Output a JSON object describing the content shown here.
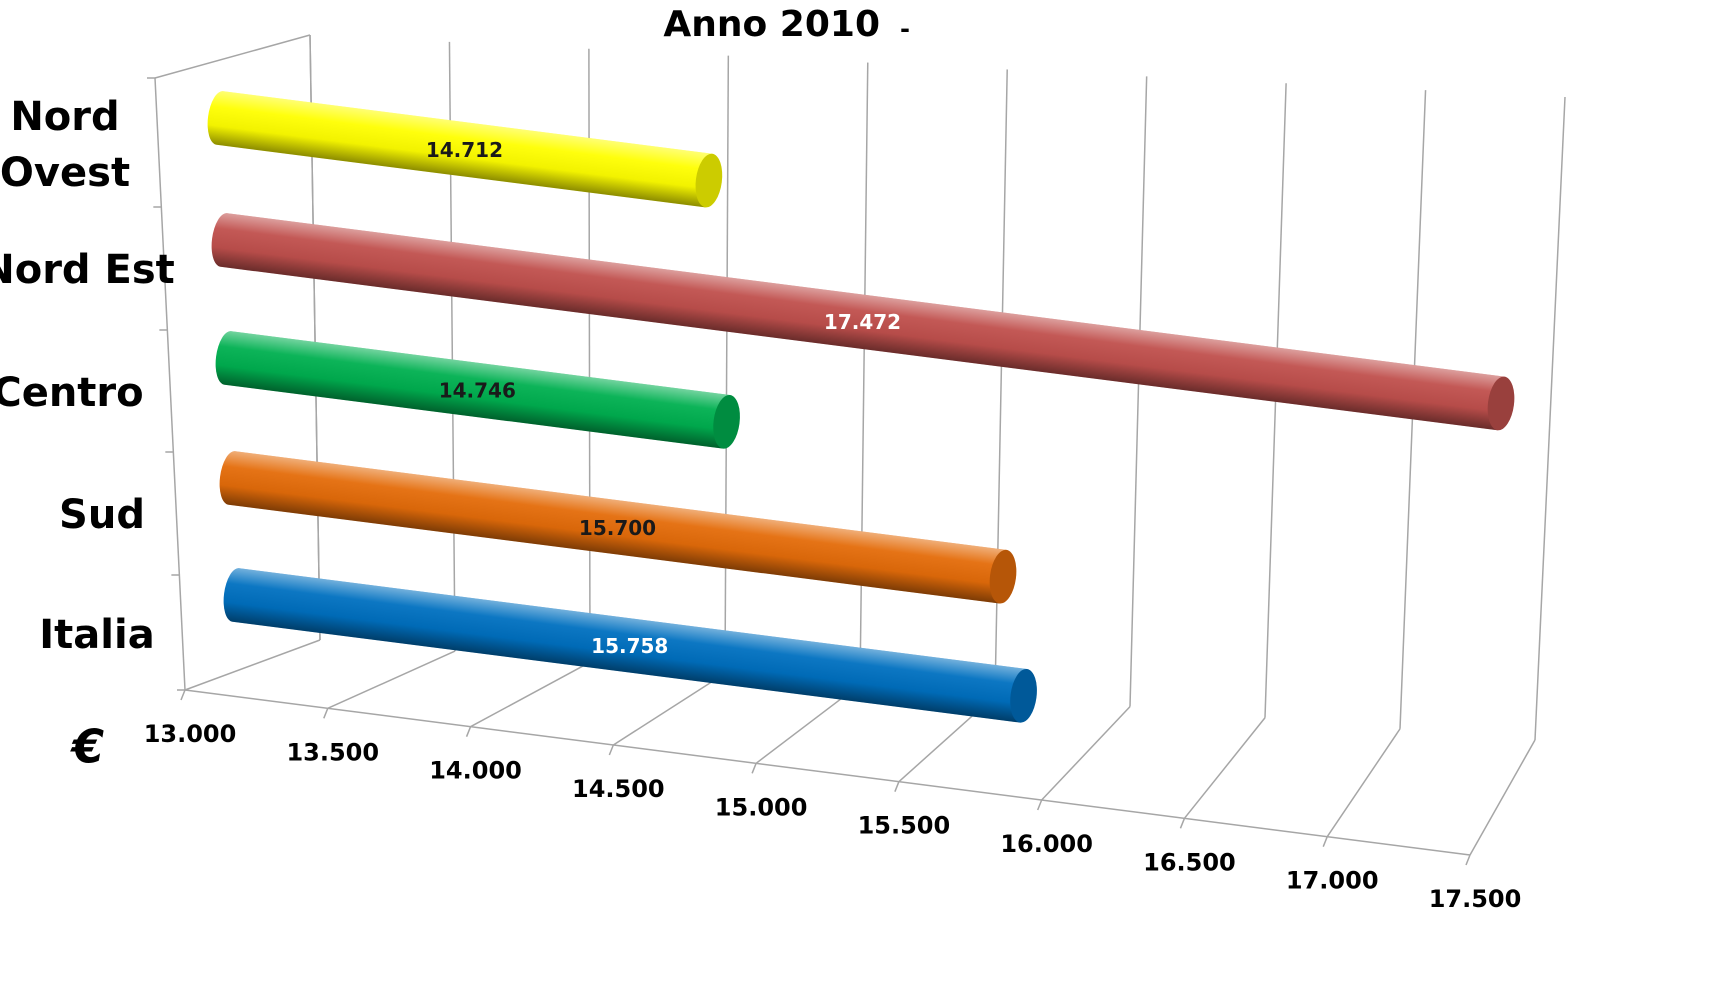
{
  "chart_data": {
    "type": "bar3d",
    "title": "Anno 2010",
    "subtitle": "-",
    "x_label": "€",
    "categories": [
      "Nord Ovest",
      "Nord Est",
      "Centro",
      "Sud",
      "Italia"
    ],
    "values": [
      14712,
      17472,
      14746,
      15700,
      15758
    ],
    "value_labels": [
      "14.712",
      "17.472",
      "14.746",
      "15.700",
      "15.758"
    ],
    "colors": [
      "#ffff00",
      "#c0504d",
      "#00b050",
      "#e46c0a",
      "#0070c0"
    ],
    "value_label_colors": [
      "#1a1a1a",
      "#ffffff",
      "#1a1a1a",
      "#1a1a1a",
      "#ffffff"
    ],
    "xlim": [
      13000,
      17500
    ],
    "xticks": [
      {
        "value": 13000,
        "label": "13.000"
      },
      {
        "value": 13500,
        "label": "13.500"
      },
      {
        "value": 14000,
        "label": "14.000"
      },
      {
        "value": 14500,
        "label": "14.500"
      },
      {
        "value": 15000,
        "label": "15.000"
      },
      {
        "value": 15500,
        "label": "15.500"
      },
      {
        "value": 16000,
        "label": "16.000"
      },
      {
        "value": 16500,
        "label": "16.500"
      },
      {
        "value": 17000,
        "label": "17.000"
      },
      {
        "value": 17500,
        "label": "17.500"
      }
    ],
    "grid": true
  }
}
